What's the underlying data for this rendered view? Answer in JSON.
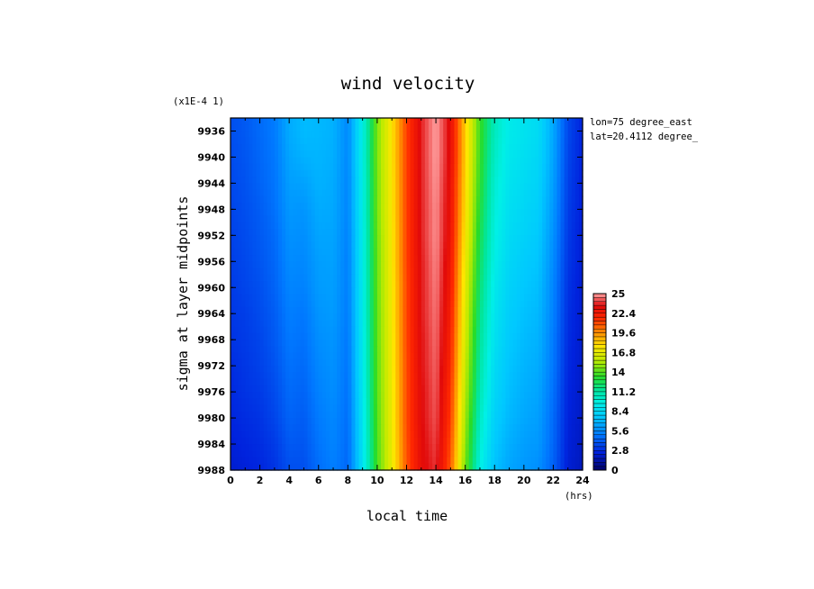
{
  "chart_data": {
    "type": "heatmap",
    "title": "wind velocity",
    "xlabel": "local time",
    "ylabel": "sigma at layer midpoints",
    "x_unit": "(hrs)",
    "y_multiplier": "(x1E-4 1)",
    "annotations": [
      "lon=75 degree_east",
      "lat=20.4112 degree_"
    ],
    "xlim": [
      0,
      24
    ],
    "ylim": [
      9988,
      9934
    ],
    "x_ticks": [
      0,
      2,
      4,
      6,
      8,
      10,
      12,
      14,
      16,
      18,
      20,
      22,
      24
    ],
    "y_ticks": [
      9936,
      9940,
      9944,
      9948,
      9952,
      9956,
      9960,
      9964,
      9968,
      9972,
      9976,
      9980,
      9984,
      9988
    ],
    "colorbar": {
      "min": 0,
      "max": 25,
      "tick_labels": [
        "25",
        "22.4",
        "19.6",
        "16.8",
        "14",
        "11.2",
        "8.4",
        "5.6",
        "2.8",
        "0"
      ]
    },
    "x": [
      0,
      1,
      2,
      3,
      4,
      5,
      6,
      7,
      8,
      9,
      10,
      11,
      12,
      13,
      14,
      15,
      16,
      17,
      18,
      19,
      20,
      21,
      22,
      23,
      24
    ],
    "y": [
      9936,
      9940,
      9944,
      9948,
      9952,
      9956,
      9960,
      9964,
      9968,
      9972,
      9976,
      9980,
      9984,
      9988
    ],
    "z": [
      [
        3.8,
        4.1,
        4.6,
        5.1,
        6.6,
        7.1,
        7.0,
        6.8,
        5.5,
        9.5,
        14.5,
        17.5,
        21.0,
        23.5,
        25.0,
        23.0,
        18.0,
        13.5,
        10.5,
        9.2,
        8.8,
        8.4,
        6.5,
        3.6,
        2.5
      ],
      [
        3.7,
        4.0,
        4.5,
        5.0,
        6.4,
        6.8,
        6.9,
        6.7,
        5.5,
        9.5,
        14.5,
        17.5,
        21.0,
        23.5,
        25.0,
        23.0,
        18.0,
        13.4,
        10.3,
        9.0,
        8.6,
        8.2,
        6.4,
        3.5,
        2.5
      ],
      [
        3.6,
        3.9,
        4.4,
        4.9,
        6.2,
        6.3,
        6.8,
        6.6,
        5.4,
        9.4,
        14.4,
        17.4,
        21.0,
        23.5,
        24.9,
        22.8,
        17.8,
        13.2,
        10.0,
        8.8,
        8.4,
        8.0,
        6.2,
        3.4,
        2.4
      ],
      [
        3.5,
        3.8,
        4.2,
        4.8,
        6.0,
        5.9,
        6.6,
        6.5,
        5.4,
        9.4,
        14.4,
        17.4,
        21.0,
        23.5,
        24.8,
        22.7,
        17.6,
        12.9,
        9.8,
        8.6,
        8.2,
        7.8,
        6.0,
        3.3,
        2.4
      ],
      [
        3.4,
        3.7,
        4.1,
        4.6,
        5.8,
        5.7,
        6.4,
        6.4,
        5.3,
        9.3,
        14.3,
        17.3,
        21.0,
        23.5,
        24.8,
        22.6,
        17.3,
        12.6,
        9.6,
        8.4,
        8.0,
        7.6,
        5.8,
        3.2,
        2.3
      ],
      [
        3.3,
        3.6,
        4.0,
        4.5,
        5.6,
        5.5,
        6.2,
        6.3,
        5.2,
        9.3,
        14.2,
        17.3,
        21.0,
        23.4,
        24.7,
        22.4,
        17.0,
        12.3,
        9.4,
        8.2,
        7.7,
        7.4,
        5.6,
        3.1,
        2.3
      ],
      [
        3.2,
        3.5,
        3.8,
        4.4,
        5.4,
        5.3,
        6.1,
        6.2,
        5.2,
        9.2,
        14.2,
        17.2,
        20.9,
        23.4,
        24.6,
        22.2,
        16.7,
        12.0,
        9.1,
        8.0,
        7.5,
        7.2,
        5.4,
        3.0,
        2.2
      ],
      [
        3.1,
        3.3,
        3.7,
        4.2,
        5.2,
        5.0,
        5.9,
        6.1,
        5.1,
        9.2,
        14.1,
        17.2,
        20.9,
        23.4,
        24.5,
        22.0,
        16.4,
        11.7,
        8.9,
        7.8,
        7.3,
        7.0,
        5.3,
        2.9,
        2.2
      ],
      [
        3.0,
        3.2,
        3.5,
        4.1,
        5.0,
        4.8,
        5.7,
        5.9,
        5.0,
        9.1,
        14.1,
        17.1,
        20.9,
        23.3,
        24.4,
        21.8,
        16.1,
        11.4,
        8.7,
        7.6,
        7.1,
        6.8,
        5.1,
        2.8,
        2.1
      ],
      [
        2.8,
        3.1,
        3.4,
        3.9,
        4.8,
        4.6,
        5.5,
        5.8,
        4.9,
        9.1,
        14.0,
        17.1,
        20.8,
        23.3,
        24.3,
        21.6,
        15.8,
        11.1,
        8.4,
        7.4,
        6.9,
        6.6,
        5.0,
        2.7,
        2.1
      ],
      [
        2.7,
        3.0,
        3.2,
        3.7,
        4.6,
        4.4,
        5.3,
        5.7,
        4.8,
        9.0,
        14.0,
        17.0,
        20.8,
        23.2,
        24.2,
        21.3,
        15.5,
        10.8,
        8.2,
        7.2,
        6.7,
        6.4,
        4.8,
        2.6,
        2.0
      ],
      [
        2.6,
        2.8,
        3.0,
        3.5,
        4.4,
        4.2,
        5.1,
        5.5,
        4.7,
        8.9,
        13.9,
        17.0,
        20.8,
        23.2,
        24.1,
        21.1,
        15.1,
        10.4,
        7.9,
        7.0,
        6.5,
        6.2,
        4.6,
        2.5,
        2.0
      ],
      [
        2.4,
        2.6,
        2.8,
        3.2,
        4.1,
        4.0,
        4.9,
        5.4,
        4.6,
        8.8,
        13.8,
        16.9,
        20.7,
        23.1,
        23.9,
        20.8,
        14.7,
        10.0,
        7.6,
        6.7,
        6.2,
        6.0,
        4.5,
        2.4,
        1.9
      ],
      [
        2.2,
        2.4,
        2.6,
        3.0,
        3.8,
        3.8,
        4.7,
        5.2,
        4.5,
        8.7,
        13.7,
        16.8,
        20.6,
        23.0,
        23.7,
        20.5,
        14.3,
        9.6,
        7.3,
        6.4,
        6.0,
        5.7,
        4.3,
        2.3,
        1.8
      ]
    ]
  }
}
